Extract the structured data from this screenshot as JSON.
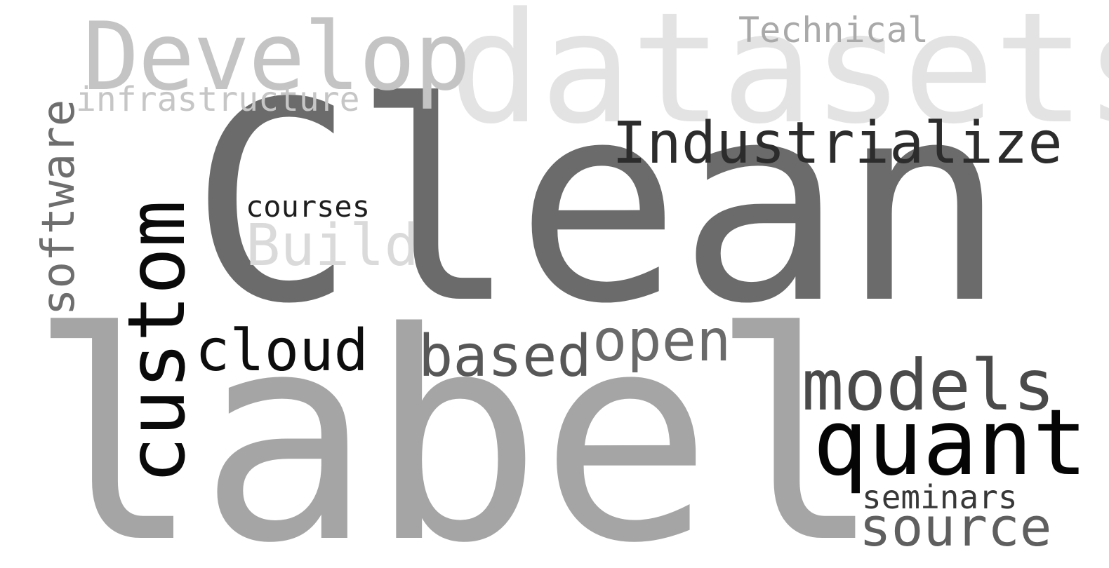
{
  "word_cloud": {
    "words": {
      "label": {
        "text": "label",
        "color": "#a5a5a5"
      },
      "clean": {
        "text": "Clean",
        "color": "#6b6b6b"
      },
      "datasets": {
        "text": "datasets",
        "color": "#e3e3e3"
      },
      "develop": {
        "text": "Develop",
        "color": "#c4c4c4"
      },
      "technical": {
        "text": "Technical",
        "color": "#a9a9a9"
      },
      "infrastructure": {
        "text": "infrastructure",
        "color": "#c6c6c6"
      },
      "software": {
        "text": "software",
        "color": "#6e6e6e"
      },
      "custom": {
        "text": "custom",
        "color": "#0a0a0a"
      },
      "courses": {
        "text": "courses",
        "color": "#1e1e1e"
      },
      "build": {
        "text": "Build",
        "color": "#dadada"
      },
      "industrialize": {
        "text": "Industrialize",
        "color": "#2c2c2c"
      },
      "cloud": {
        "text": "cloud",
        "color": "#0d0d0d"
      },
      "based": {
        "text": "based",
        "color": "#575757"
      },
      "open": {
        "text": "open",
        "color": "#6a6a6a"
      },
      "models": {
        "text": "models",
        "color": "#4a4a4a"
      },
      "quant": {
        "text": "quant",
        "color": "#050505"
      },
      "seminars": {
        "text": "seminars",
        "color": "#373737"
      },
      "source": {
        "text": "source",
        "color": "#5f5f5f"
      }
    }
  }
}
